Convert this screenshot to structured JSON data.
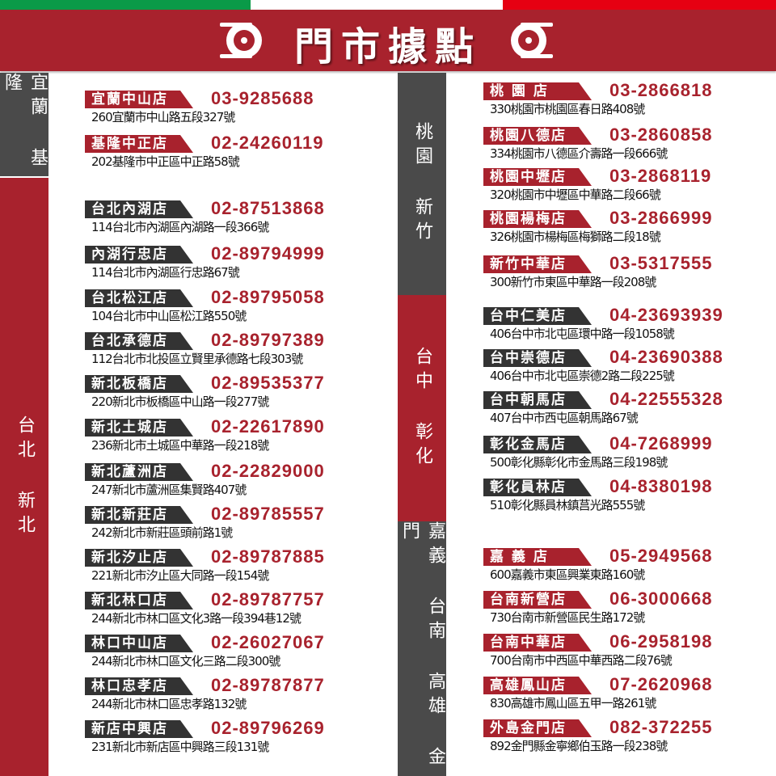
{
  "header": {
    "title": "門市據點",
    "colors": {
      "green": "#0a9a48",
      "white": "#ffffff",
      "red": "#e60012",
      "brand": "#a8222d",
      "dark": "#4a4a4a"
    },
    "icon": "tire-icon"
  },
  "regions": {
    "yilan_keelung": "宜蘭 基隆",
    "taipei_newtaipei": "台北 新北",
    "taoyuan_hsinchu": "桃園 新竹",
    "taichung_changhua": "台中 彰化",
    "south": "嘉義 台南 高雄 金門"
  },
  "left_stores": [
    {
      "name": "宜蘭中山店",
      "phone": "03-9285688",
      "address": "260宜蘭市中山路五段327號",
      "tag_color": "red"
    },
    {
      "name": "基隆中正店",
      "phone": "02-24260119",
      "address": "202基隆市中正區中正路58號",
      "tag_color": "red"
    },
    {
      "name": "台北內湖店",
      "phone": "02-87513868",
      "address": "114台北市內湖區內湖路一段366號",
      "tag_color": "dark"
    },
    {
      "name": "內湖行忠店",
      "phone": "02-89794999",
      "address": "114台北市內湖區行忠路67號",
      "tag_color": "dark"
    },
    {
      "name": "台北松江店",
      "phone": "02-89795058",
      "address": "104台北市中山區松江路550號",
      "tag_color": "dark"
    },
    {
      "name": "台北承德店",
      "phone": "02-89797389",
      "address": "112台北市北投區立賢里承德路七段303號",
      "tag_color": "dark"
    },
    {
      "name": "新北板橋店",
      "phone": "02-89535377",
      "address": "220新北市板橋區中山路一段277號",
      "tag_color": "dark"
    },
    {
      "name": "新北土城店",
      "phone": "02-22617890",
      "address": "236新北市土城區中華路一段218號",
      "tag_color": "dark"
    },
    {
      "name": "新北蘆洲店",
      "phone": "02-22829000",
      "address": "247新北市蘆洲區集賢路407號",
      "tag_color": "dark"
    },
    {
      "name": "新北新莊店",
      "phone": "02-89785557",
      "address": "242新北市新莊區頭前路1號",
      "tag_color": "dark"
    },
    {
      "name": "新北汐止店",
      "phone": "02-89787885",
      "address": "221新北市汐止區大同路一段154號",
      "tag_color": "dark"
    },
    {
      "name": "新北林口店",
      "phone": "02-89787757",
      "address": "244新北市林口區文化3路一段394巷12號",
      "tag_color": "dark"
    },
    {
      "name": "林口中山店",
      "phone": "02-26027067",
      "address": "244新北市林口區文化三路二段300號",
      "tag_color": "dark"
    },
    {
      "name": "林口忠孝店",
      "phone": "02-89787877",
      "address": "244新北市林口區忠孝路132號",
      "tag_color": "dark"
    },
    {
      "name": "新店中興店",
      "phone": "02-89796269",
      "address": "231新北市新店區中興路三段131號",
      "tag_color": "dark"
    }
  ],
  "right_stores": [
    {
      "name": "桃 園 店",
      "phone": "03-2866818",
      "address": "330桃園市桃園區春日路408號",
      "tag_color": "red"
    },
    {
      "name": "桃園八德店",
      "phone": "03-2860858",
      "address": "334桃園市八德區介壽路一段666號",
      "tag_color": "red"
    },
    {
      "name": "桃園中壢店",
      "phone": "03-2868119",
      "address": "320桃園市中壢區中華路二段66號",
      "tag_color": "red"
    },
    {
      "name": "桃園楊梅店",
      "phone": "03-2866999",
      "address": "326桃園市楊梅區梅獅路二段18號",
      "tag_color": "red"
    },
    {
      "name": "新竹中華店",
      "phone": "03-5317555",
      "address": "300新竹市東區中華路一段208號",
      "tag_color": "red"
    },
    {
      "name": "台中仁美店",
      "phone": "04-23693939",
      "address": "406台中市北屯區環中路一段1058號",
      "tag_color": "dark"
    },
    {
      "name": "台中崇德店",
      "phone": "04-23690388",
      "address": "406台中市北屯區崇德2路二段225號",
      "tag_color": "dark"
    },
    {
      "name": "台中朝馬店",
      "phone": "04-22555328",
      "address": "407台中市西屯區朝馬路67號",
      "tag_color": "dark"
    },
    {
      "name": "彰化金馬店",
      "phone": "04-7268999",
      "address": "500彰化縣彰化市金馬路三段198號",
      "tag_color": "dark"
    },
    {
      "name": "彰化員林店",
      "phone": "04-8380198",
      "address": "510彰化縣員林鎮莒光路555號",
      "tag_color": "dark"
    },
    {
      "name": "嘉 義 店",
      "phone": "05-2949568",
      "address": "600嘉義市東區興業東路160號",
      "tag_color": "red"
    },
    {
      "name": "台南新營店",
      "phone": "06-3000668",
      "address": "730台南市新營區民生路172號",
      "tag_color": "red"
    },
    {
      "name": "台南中華店",
      "phone": "06-2958198",
      "address": "700台南市中西區中華西路二段76號",
      "tag_color": "red"
    },
    {
      "name": "高雄鳳山店",
      "phone": "07-2620968",
      "address": "830高雄市鳳山區五甲一路261號",
      "tag_color": "red"
    },
    {
      "name": "外島金門店",
      "phone": "082-372255",
      "address": "892金門縣金寧鄉伯玉路一段238號",
      "tag_color": "red"
    }
  ]
}
